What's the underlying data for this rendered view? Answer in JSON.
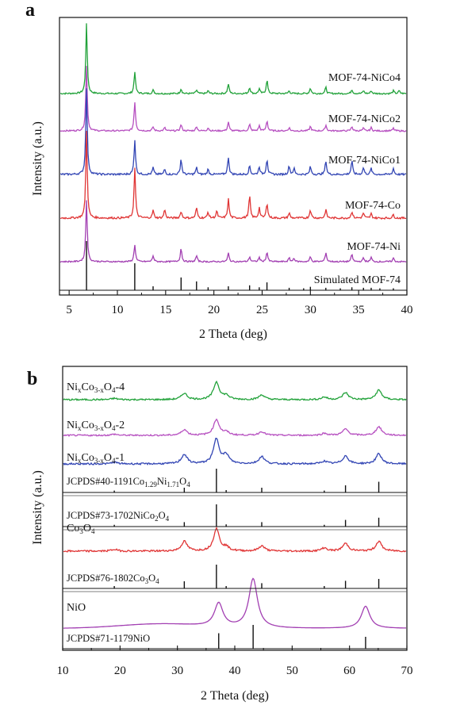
{
  "chart_data": [
    {
      "panel": "a",
      "type": "line",
      "xlabel": "2 Theta (deg)",
      "ylabel": "Intensity (a.u.)",
      "xlim": [
        4,
        40
      ],
      "xticks": [
        5,
        10,
        15,
        20,
        25,
        30,
        35,
        40
      ],
      "series": [
        {
          "name": "MOF-74-NiCo4",
          "color": "#22a23a",
          "peaks": [
            [
              6.8,
              100
            ],
            [
              11.8,
              32
            ],
            [
              13.7,
              5
            ],
            [
              16.6,
              7
            ],
            [
              18.2,
              5
            ],
            [
              19.4,
              4
            ],
            [
              21.5,
              14
            ],
            [
              23.7,
              9
            ],
            [
              24.7,
              7
            ],
            [
              25.5,
              20
            ],
            [
              27.8,
              4
            ],
            [
              30.0,
              8
            ],
            [
              31.6,
              9
            ],
            [
              34.3,
              6
            ],
            [
              35.5,
              4
            ],
            [
              36.3,
              4
            ],
            [
              38.6,
              4
            ],
            [
              39.2,
              4
            ]
          ]
        },
        {
          "name": "MOF-74-NiCo2",
          "color": "#b64fc0",
          "peaks": [
            [
              6.8,
              100
            ],
            [
              11.8,
              45
            ],
            [
              13.7,
              6
            ],
            [
              14.9,
              5
            ],
            [
              16.6,
              10
            ],
            [
              18.2,
              7
            ],
            [
              19.4,
              5
            ],
            [
              21.5,
              14
            ],
            [
              23.7,
              10
            ],
            [
              24.7,
              8
            ],
            [
              25.5,
              16
            ],
            [
              27.8,
              5
            ],
            [
              30.0,
              7
            ],
            [
              31.6,
              9
            ],
            [
              34.3,
              7
            ],
            [
              35.5,
              4
            ],
            [
              36.3,
              5
            ],
            [
              38.6,
              4
            ]
          ]
        },
        {
          "name": "MOF-74-NiCo1",
          "color": "#3245b4",
          "peaks": [
            [
              6.8,
              100
            ],
            [
              11.8,
              40
            ],
            [
              13.7,
              8
            ],
            [
              14.9,
              6
            ],
            [
              16.6,
              18
            ],
            [
              18.2,
              8
            ],
            [
              19.4,
              6
            ],
            [
              21.5,
              20
            ],
            [
              23.7,
              10
            ],
            [
              24.7,
              9
            ],
            [
              25.5,
              18
            ],
            [
              27.8,
              10
            ],
            [
              28.3,
              7
            ],
            [
              30.0,
              9
            ],
            [
              31.6,
              16
            ],
            [
              34.3,
              16
            ],
            [
              35.5,
              8
            ],
            [
              36.3,
              7
            ],
            [
              38.6,
              7
            ]
          ]
        },
        {
          "name": "MOF-74-Co",
          "color": "#e03535",
          "peaks": [
            [
              6.8,
              100
            ],
            [
              11.8,
              58
            ],
            [
              13.7,
              9
            ],
            [
              14.9,
              10
            ],
            [
              16.6,
              8
            ],
            [
              18.2,
              12
            ],
            [
              19.4,
              7
            ],
            [
              20.3,
              8
            ],
            [
              21.5,
              22
            ],
            [
              23.7,
              26
            ],
            [
              24.7,
              12
            ],
            [
              25.5,
              18
            ],
            [
              27.8,
              6
            ],
            [
              30.0,
              10
            ],
            [
              31.6,
              10
            ],
            [
              34.3,
              8
            ],
            [
              35.5,
              6
            ],
            [
              36.3,
              5
            ],
            [
              38.6,
              4
            ]
          ]
        },
        {
          "name": "MOF-74-Ni",
          "color": "#a23fb2",
          "peaks": [
            [
              6.8,
              100
            ],
            [
              11.8,
              28
            ],
            [
              13.7,
              10
            ],
            [
              16.6,
              22
            ],
            [
              18.2,
              10
            ],
            [
              21.5,
              14
            ],
            [
              23.7,
              8
            ],
            [
              24.7,
              7
            ],
            [
              25.5,
              16
            ],
            [
              27.8,
              6
            ],
            [
              28.3,
              6
            ],
            [
              30.0,
              8
            ],
            [
              31.6,
              15
            ],
            [
              34.3,
              12
            ],
            [
              35.5,
              6
            ],
            [
              36.3,
              7
            ],
            [
              38.6,
              6
            ]
          ]
        },
        {
          "name": "Simulated MOF-74",
          "color": "#111111",
          "peaks": [
            [
              6.8,
              100
            ],
            [
              11.8,
              55
            ],
            [
              13.7,
              8
            ],
            [
              16.6,
              26
            ],
            [
              18.2,
              18
            ],
            [
              19.4,
              6
            ],
            [
              21.5,
              8
            ],
            [
              23.7,
              10
            ],
            [
              24.7,
              6
            ],
            [
              25.5,
              16
            ],
            [
              27.8,
              5
            ],
            [
              29.3,
              4
            ],
            [
              30.0,
              7
            ],
            [
              31.6,
              5
            ],
            [
              33.1,
              4
            ],
            [
              34.3,
              6
            ],
            [
              35.5,
              5
            ],
            [
              36.3,
              5
            ],
            [
              37.2,
              4
            ],
            [
              38.6,
              4
            ]
          ]
        }
      ]
    },
    {
      "panel": "b",
      "type": "line",
      "xlabel": "2 Theta (deg)",
      "ylabel": "Intensity (a.u.)",
      "xlim": [
        10,
        70
      ],
      "xticks": [
        10,
        20,
        30,
        40,
        50,
        60,
        70
      ],
      "series": [
        {
          "name": "NixCo3-xO4-4",
          "label_parts": [
            "Ni",
            "x",
            "Co",
            "3-x",
            "O",
            "4",
            "-4"
          ],
          "color": "#22a23a",
          "peaks": [
            [
              19.0,
              4
            ],
            [
              31.2,
              20
            ],
            [
              36.8,
              55
            ],
            [
              38.5,
              12
            ],
            [
              44.7,
              15
            ],
            [
              55.6,
              8
            ],
            [
              59.3,
              22
            ],
            [
              65.1,
              30
            ]
          ]
        },
        {
          "name": "NixCo3-xO4-2",
          "label_parts": [
            "Ni",
            "x",
            "Co",
            "3-x",
            "O",
            "4",
            "-2"
          ],
          "color": "#b64fc0",
          "peaks": [
            [
              19.0,
              4
            ],
            [
              31.2,
              20
            ],
            [
              36.8,
              55
            ],
            [
              38.5,
              10
            ],
            [
              44.7,
              13
            ],
            [
              55.6,
              7
            ],
            [
              59.3,
              22
            ],
            [
              65.1,
              30
            ]
          ]
        },
        {
          "name": "NixCo3-xO4-1",
          "label_parts": [
            "Ni",
            "x",
            "Co",
            "3-x",
            "O",
            "4",
            "-1"
          ],
          "color": "#3245b4",
          "peaks": [
            [
              19.0,
              5
            ],
            [
              31.2,
              28
            ],
            [
              36.8,
              75
            ],
            [
              38.5,
              25
            ],
            [
              44.7,
              22
            ],
            [
              55.6,
              8
            ],
            [
              59.3,
              24
            ],
            [
              65.1,
              30
            ]
          ]
        },
        {
          "name": "Co3O4",
          "label_parts": [
            "Co",
            "3",
            "O",
            "4",
            "",
            "",
            ""
          ],
          "color": "#e03535",
          "peaks": [
            [
              19.0,
              5
            ],
            [
              31.2,
              28
            ],
            [
              36.8,
              65
            ],
            [
              38.5,
              10
            ],
            [
              44.7,
              15
            ],
            [
              55.6,
              9
            ],
            [
              59.3,
              22
            ],
            [
              65.1,
              28
            ]
          ]
        },
        {
          "name": "NiO",
          "label_parts": [
            "NiO",
            "",
            "",
            "",
            "",
            "",
            ""
          ],
          "color": "#a23fb2",
          "peaks": [
            [
              37.2,
              48
            ],
            [
              43.2,
              100
            ],
            [
              62.8,
              45
            ]
          ]
        }
      ],
      "references": [
        {
          "name": "JCPDS#40-1191Co1.29Ni1.71O4",
          "label_parts": [
            "JCPDS#40-1191Co",
            "1.29",
            "Ni",
            "1.71",
            "O",
            "4"
          ],
          "color": "#111111",
          "lines": [
            [
              19.0,
              8
            ],
            [
              31.2,
              20
            ],
            [
              36.8,
              100
            ],
            [
              38.5,
              10
            ],
            [
              44.7,
              20
            ],
            [
              55.6,
              8
            ],
            [
              59.3,
              30
            ],
            [
              65.1,
              45
            ]
          ]
        },
        {
          "name": "JCPDS#73-1702NiCo2O4",
          "label_parts": [
            "JCPDS#73-1702NiCo",
            "2",
            "O",
            "4",
            "",
            ""
          ],
          "color": "#111111",
          "lines": [
            [
              19.0,
              8
            ],
            [
              31.2,
              20
            ],
            [
              36.8,
              100
            ],
            [
              38.5,
              10
            ],
            [
              44.7,
              20
            ],
            [
              55.6,
              8
            ],
            [
              59.3,
              30
            ],
            [
              65.1,
              40
            ]
          ]
        },
        {
          "name": "JCPDS#76-1802Co3O4",
          "label_parts": [
            "JCPDS#76-1802Co",
            "3",
            "O",
            "4",
            "",
            ""
          ],
          "color": "#111111",
          "lines": [
            [
              19.0,
              10
            ],
            [
              31.2,
              30
            ],
            [
              36.8,
              100
            ],
            [
              38.5,
              10
            ],
            [
              44.7,
              22
            ],
            [
              55.6,
              10
            ],
            [
              59.3,
              32
            ],
            [
              65.1,
              40
            ]
          ]
        },
        {
          "name": "JCPDS#71-1179NiO",
          "label_parts": [
            "JCPDS#71-1179NiO",
            "",
            "",
            "",
            "",
            ""
          ],
          "color": "#111111",
          "lines": [
            [
              37.2,
              65
            ],
            [
              43.2,
              100
            ],
            [
              62.8,
              50
            ]
          ]
        }
      ]
    }
  ]
}
